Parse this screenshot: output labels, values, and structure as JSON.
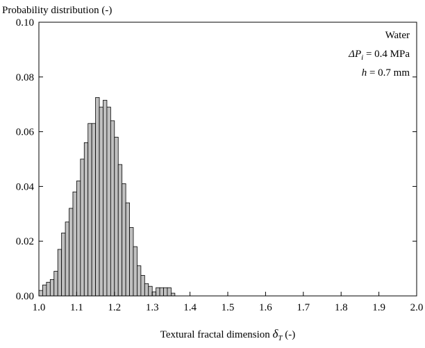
{
  "chart_data": {
    "type": "bar",
    "title": "",
    "ylabel": "Probability distribution (-)",
    "xlabel_main": "Textural fractal dimension ",
    "xlabel_symbol": "δ",
    "xlabel_sub": "T",
    "xlabel_unit": " (-)",
    "xlim": [
      1.0,
      2.0
    ],
    "ylim": [
      0.0,
      0.1
    ],
    "x_ticks": [
      "1.0",
      "1.1",
      "1.2",
      "1.3",
      "1.4",
      "1.5",
      "1.6",
      "1.7",
      "1.8",
      "1.9",
      "2.0"
    ],
    "y_ticks": [
      "0.00",
      "0.02",
      "0.04",
      "0.06",
      "0.08",
      "0.10"
    ],
    "bin_width": 0.01,
    "bar_color": "#c0c0c0",
    "bins": [
      [
        1.01,
        0.002
      ],
      [
        1.02,
        0.004
      ],
      [
        1.03,
        0.005
      ],
      [
        1.04,
        0.006
      ],
      [
        1.05,
        0.009
      ],
      [
        1.06,
        0.017
      ],
      [
        1.07,
        0.023
      ],
      [
        1.08,
        0.027
      ],
      [
        1.09,
        0.032
      ],
      [
        1.1,
        0.038
      ],
      [
        1.11,
        0.042
      ],
      [
        1.12,
        0.05
      ],
      [
        1.13,
        0.056
      ],
      [
        1.14,
        0.063
      ],
      [
        1.15,
        0.063
      ],
      [
        1.16,
        0.0725
      ],
      [
        1.17,
        0.069
      ],
      [
        1.18,
        0.0715
      ],
      [
        1.19,
        0.069
      ],
      [
        1.2,
        0.064
      ],
      [
        1.21,
        0.058
      ],
      [
        1.22,
        0.048
      ],
      [
        1.23,
        0.041
      ],
      [
        1.24,
        0.034
      ],
      [
        1.25,
        0.025
      ],
      [
        1.26,
        0.018
      ],
      [
        1.27,
        0.011
      ],
      [
        1.28,
        0.0075
      ],
      [
        1.29,
        0.0045
      ],
      [
        1.3,
        0.0035
      ],
      [
        1.31,
        0.0015
      ],
      [
        1.32,
        0.003
      ],
      [
        1.33,
        0.003
      ],
      [
        1.34,
        0.003
      ],
      [
        1.35,
        0.003
      ],
      [
        1.36,
        0.001
      ]
    ],
    "annotations": {
      "line1": "Water",
      "line2_symbol": "ΔP",
      "line2_sub": "i",
      "line2_value": " = 0.4 MPa",
      "line3_symbol": "h",
      "line3_value": " = 0.7 mm"
    }
  }
}
